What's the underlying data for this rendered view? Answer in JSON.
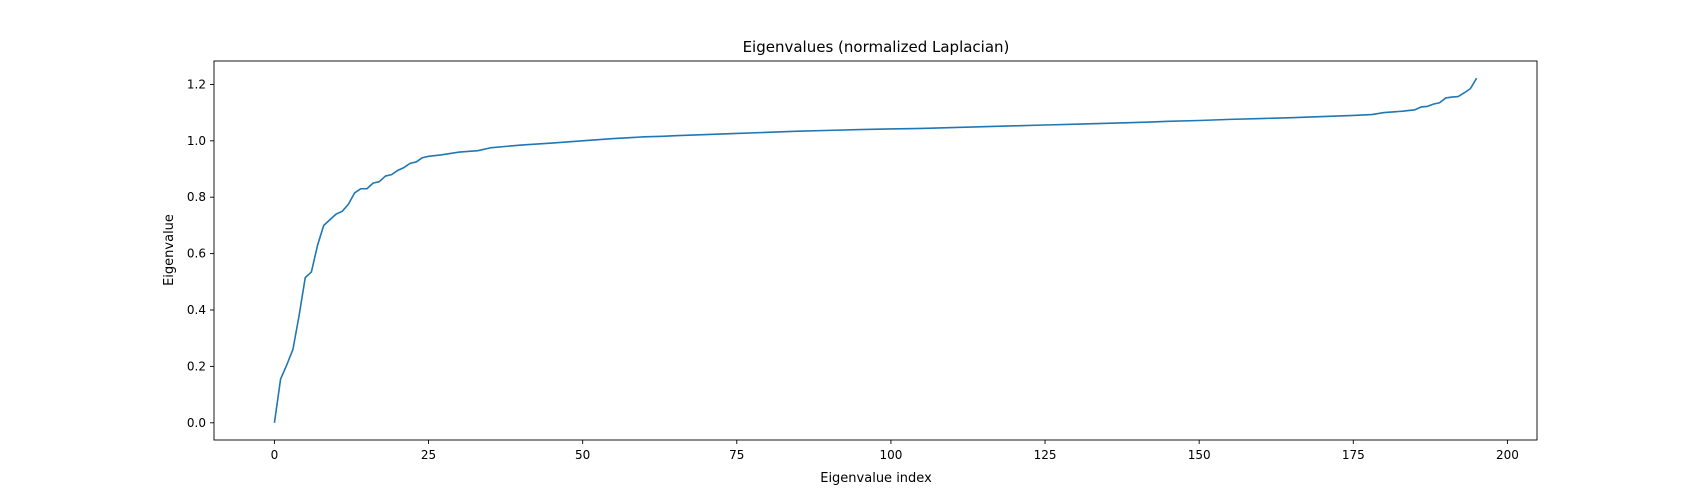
{
  "chart_data": {
    "type": "line",
    "title": "Eigenvalues (normalized Laplacian)",
    "xlabel": "Eigenvalue index",
    "ylabel": "Eigenvalue",
    "xlim": [
      -9.8,
      204.8
    ],
    "ylim": [
      -0.061,
      1.283
    ],
    "xticks": [
      0,
      25,
      50,
      75,
      100,
      125,
      150,
      175,
      200
    ],
    "yticks": [
      0.0,
      0.2,
      0.4,
      0.6,
      0.8,
      1.0,
      1.2
    ],
    "ytick_labels": [
      "0.0",
      "0.2",
      "0.4",
      "0.6",
      "0.8",
      "1.0",
      "1.2"
    ],
    "grid": false,
    "series": [
      {
        "color": "#1f77b4",
        "x": [
          0,
          1,
          2,
          3,
          4,
          5,
          6,
          7,
          8,
          9,
          10,
          11,
          12,
          13,
          14,
          15,
          16,
          17,
          18,
          19,
          20,
          21,
          22,
          23,
          24,
          25,
          27,
          30,
          33,
          35,
          40,
          45,
          50,
          55,
          60,
          63,
          65,
          70,
          75,
          80,
          85,
          90,
          95,
          100,
          105,
          110,
          115,
          120,
          125,
          130,
          135,
          140,
          145,
          150,
          155,
          160,
          165,
          170,
          175,
          178,
          180,
          183,
          185,
          186,
          187,
          188,
          189,
          190,
          191,
          192,
          193,
          194,
          195
        ],
        "y": [
          0.0,
          0.155,
          0.205,
          0.26,
          0.38,
          0.515,
          0.535,
          0.63,
          0.7,
          0.72,
          0.74,
          0.75,
          0.775,
          0.815,
          0.83,
          0.83,
          0.85,
          0.855,
          0.875,
          0.88,
          0.895,
          0.905,
          0.92,
          0.925,
          0.94,
          0.945,
          0.95,
          0.96,
          0.965,
          0.975,
          0.985,
          0.992,
          1.0,
          1.008,
          1.014,
          1.016,
          1.018,
          1.022,
          1.026,
          1.03,
          1.034,
          1.037,
          1.04,
          1.042,
          1.044,
          1.047,
          1.05,
          1.053,
          1.056,
          1.059,
          1.062,
          1.065,
          1.069,
          1.072,
          1.076,
          1.079,
          1.082,
          1.086,
          1.09,
          1.093,
          1.1,
          1.105,
          1.11,
          1.12,
          1.122,
          1.13,
          1.135,
          1.152,
          1.155,
          1.157,
          1.17,
          1.185,
          1.222
        ]
      }
    ]
  }
}
